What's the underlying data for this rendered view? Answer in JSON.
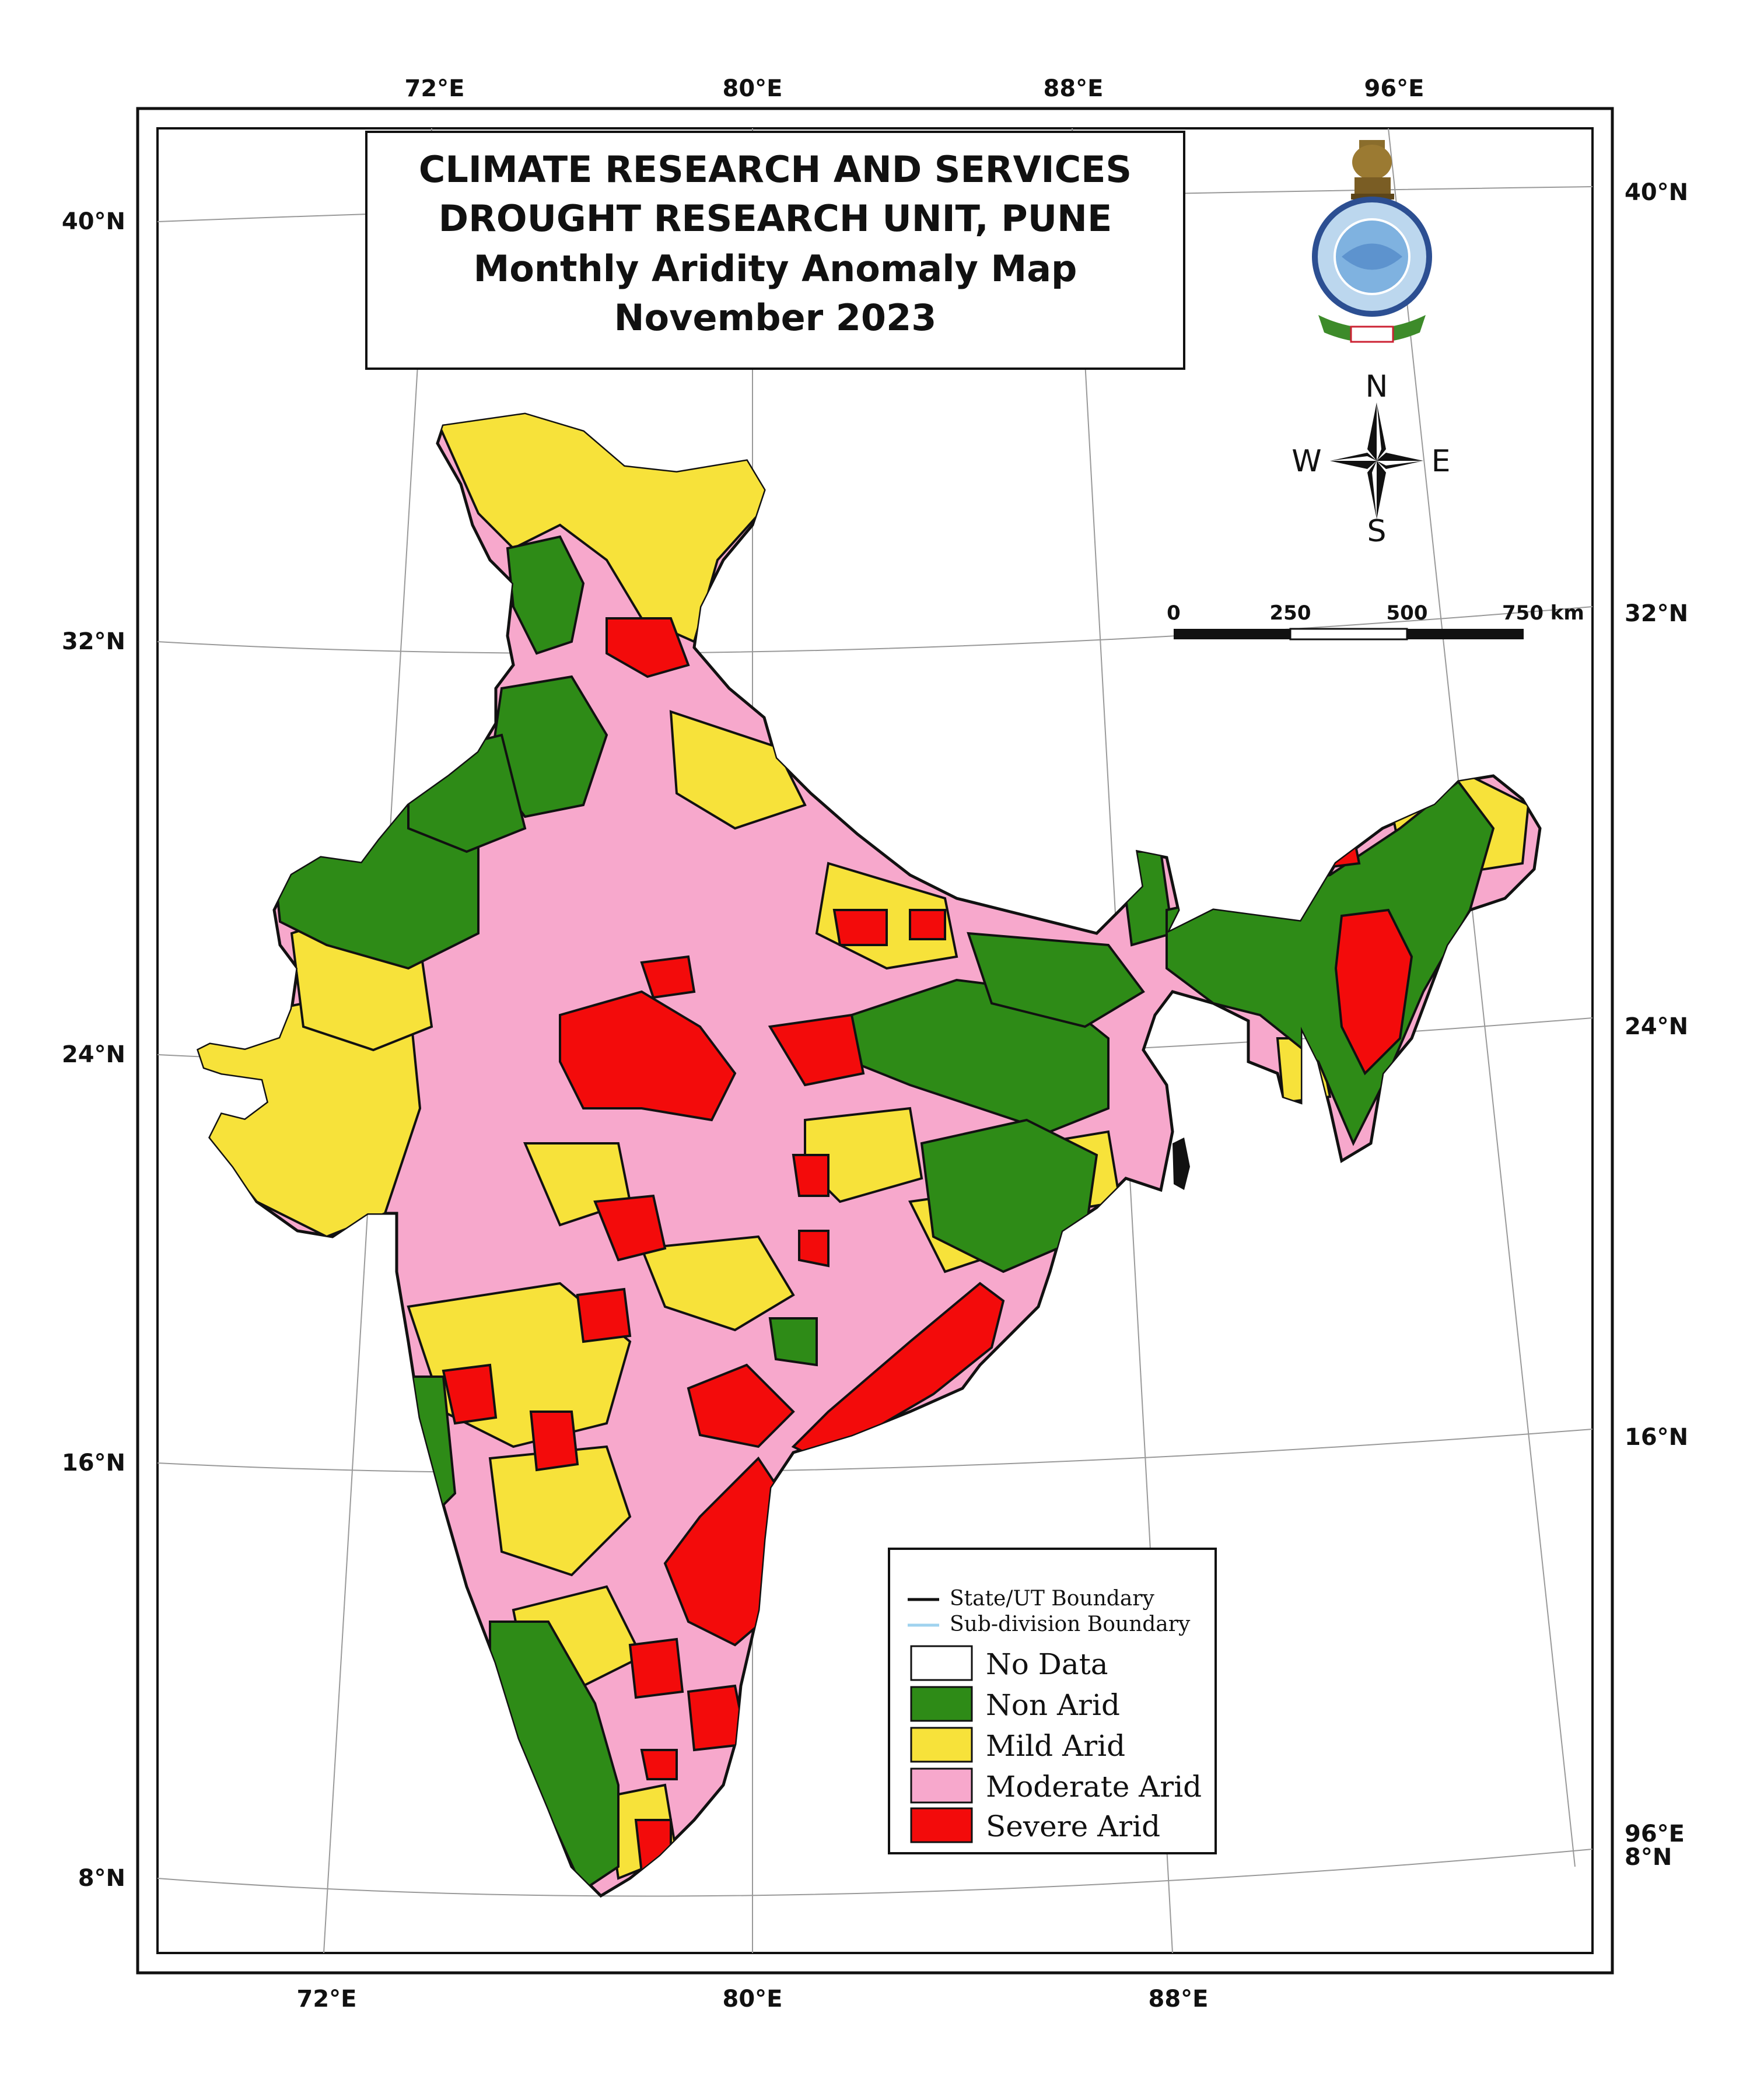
{
  "title": {
    "line1": "CLIMATE RESEARCH AND SERVICES",
    "line2": "DROUGHT RESEARCH UNIT, PUNE",
    "line3": "Monthly Aridity Anomaly Map",
    "line4": "November 2023"
  },
  "coordinates": {
    "top": [
      "72°E",
      "80°E",
      "88°E",
      "96°E"
    ],
    "bottom": [
      "72°E",
      "80°E",
      "88°E"
    ],
    "left": [
      "40°N",
      "32°N",
      "24°N",
      "16°N",
      "8°N"
    ],
    "right": [
      "40°N",
      "32°N",
      "24°N",
      "16°N",
      "96°E",
      "8°N"
    ]
  },
  "compass": {
    "n": "N",
    "s": "S",
    "e": "E",
    "w": "W"
  },
  "scale_bar": {
    "labels": [
      "0",
      "250",
      "500",
      "750 km"
    ]
  },
  "legend": {
    "lines": [
      {
        "label": "State/UT Boundary",
        "color": "#111111"
      },
      {
        "label": "Sub-division Boundary",
        "color": "#9fd3ef"
      }
    ],
    "classes": [
      {
        "label": "No Data",
        "color": "#ffffff"
      },
      {
        "label": "Non Arid",
        "color": "#2e8b17"
      },
      {
        "label": "Mild Arid",
        "color": "#f7e23a"
      },
      {
        "label": "Moderate Arid",
        "color": "#f7a8cc"
      },
      {
        "label": "Severe Arid",
        "color": "#f30b0b"
      }
    ]
  }
}
